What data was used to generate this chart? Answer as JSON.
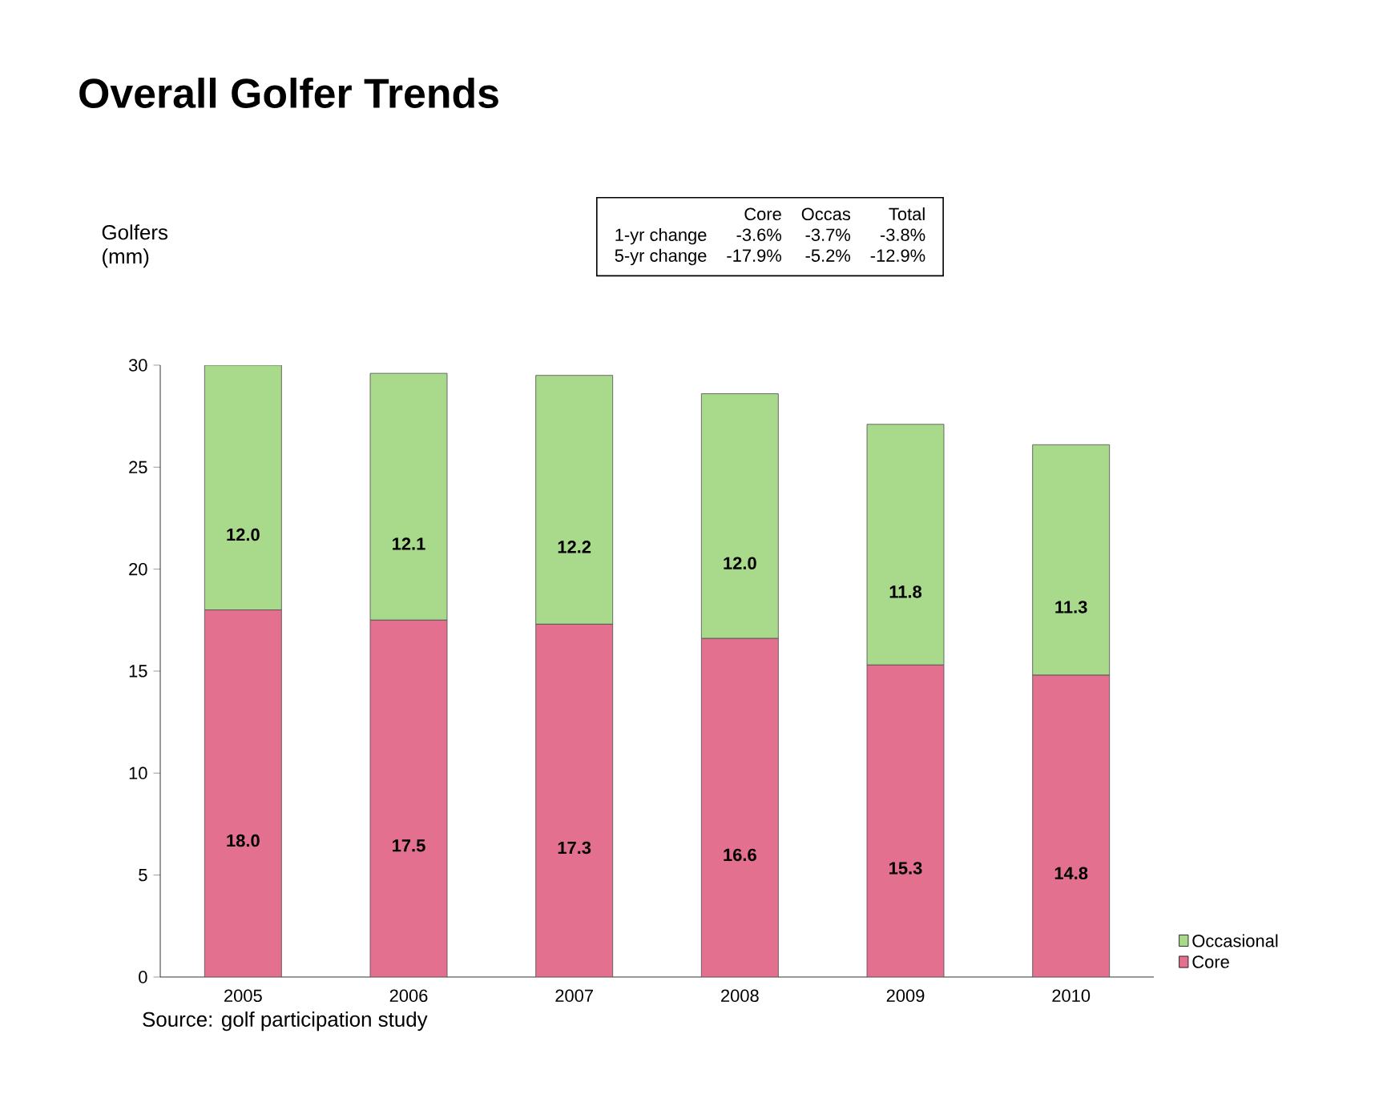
{
  "chart_data": {
    "type": "bar",
    "title": "Overall Golfer Trends",
    "ylabel": "Golfers (mm)",
    "stacked": true,
    "legend": "bottom right",
    "grid": false,
    "categories": [
      "2005",
      "2006",
      "2007",
      "2008",
      "2009",
      "2010"
    ],
    "series": [
      {
        "name": "Core",
        "color": "#e3708f",
        "values": [
          18.0,
          17.5,
          17.3,
          16.6,
          15.3,
          14.8
        ],
        "value_labels": [
          "18.0",
          "17.5",
          "17.3",
          "16.6",
          "15.3",
          "14.8"
        ]
      },
      {
        "name": "Occasional",
        "color": "#a9d98b",
        "values": [
          12.0,
          12.1,
          12.2,
          12.0,
          11.8,
          11.3
        ],
        "value_labels": [
          "12.0",
          "12.1",
          "12.2",
          "12.0",
          "11.8",
          "11.3"
        ]
      }
    ],
    "ylim": [
      0,
      30
    ],
    "yticks": [
      0,
      5,
      10,
      15,
      20,
      25,
      30
    ],
    "annotations": [
      "Core",
      "Occas",
      "Total",
      "1-yr change",
      "-3.6%",
      "-3.7%",
      "-3.8%",
      "5-yr change",
      "-17.9%",
      "-5.2%",
      "-12.9%",
      "Source: golf participation study"
    ]
  }
}
